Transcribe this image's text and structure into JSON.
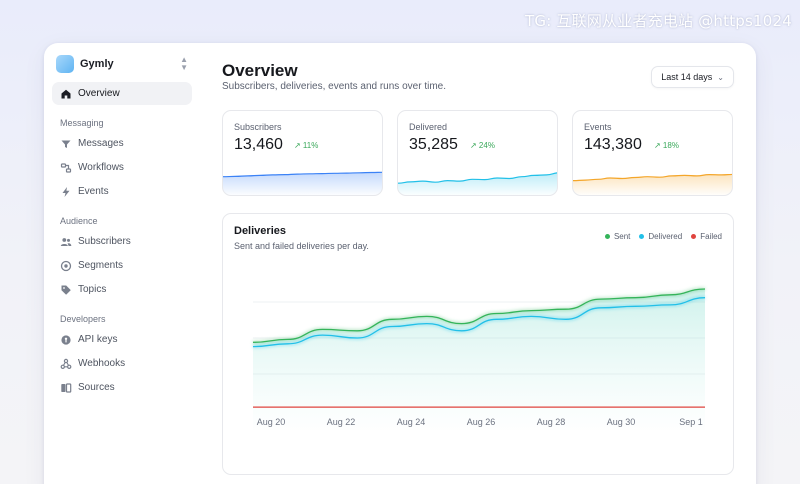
{
  "watermark": "TG: 互联网从业者充电站 @https1024",
  "workspace": {
    "name": "Gymly",
    "icon": "app-logo",
    "switch_icon": "chevron-updown-icon"
  },
  "sidebar": {
    "items": [
      {
        "label": "Overview",
        "icon": "home-icon",
        "active": true
      }
    ],
    "sections": [
      {
        "title": "Messaging",
        "items": [
          {
            "label": "Messages",
            "icon": "filter-icon"
          },
          {
            "label": "Workflows",
            "icon": "workflow-icon"
          },
          {
            "label": "Events",
            "icon": "bolt-icon"
          }
        ]
      },
      {
        "title": "Audience",
        "items": [
          {
            "label": "Subscribers",
            "icon": "users-icon"
          },
          {
            "label": "Segments",
            "icon": "target-icon"
          },
          {
            "label": "Topics",
            "icon": "tag-icon"
          }
        ]
      },
      {
        "title": "Developers",
        "items": [
          {
            "label": "API keys",
            "icon": "key-icon"
          },
          {
            "label": "Webhooks",
            "icon": "webhook-icon"
          },
          {
            "label": "Sources",
            "icon": "source-icon"
          }
        ]
      }
    ]
  },
  "header": {
    "title": "Overview",
    "subtitle": "Subscribers, deliveries, events and runs over time.",
    "range_label": "Last 14 days"
  },
  "stats": [
    {
      "label": "Subscribers",
      "value": "13,460",
      "delta": "↗ 11%",
      "color": "#3b82f6",
      "trend": [
        0.55,
        0.56,
        0.58,
        0.6,
        0.62,
        0.63,
        0.65,
        0.66,
        0.67,
        0.68,
        0.69,
        0.7,
        0.71,
        0.72
      ]
    },
    {
      "label": "Delivered",
      "value": "35,285",
      "delta": "↗ 24%",
      "color": "#22c0e8",
      "trend": [
        0.3,
        0.35,
        0.38,
        0.34,
        0.4,
        0.38,
        0.45,
        0.44,
        0.5,
        0.48,
        0.55,
        0.6,
        0.62,
        0.7
      ]
    },
    {
      "label": "Events",
      "value": "143,380",
      "delta": "↗ 18%",
      "color": "#f4a62a",
      "trend": [
        0.4,
        0.42,
        0.45,
        0.5,
        0.48,
        0.52,
        0.55,
        0.53,
        0.58,
        0.6,
        0.58,
        0.63,
        0.62,
        0.64
      ]
    }
  ],
  "deliveries": {
    "title": "Deliveries",
    "subtitle": "Sent and failed deliveries per day.",
    "legend": [
      {
        "label": "Sent",
        "color": "#34b45a"
      },
      {
        "label": "Delivered",
        "color": "#22c0e8"
      },
      {
        "label": "Failed",
        "color": "#e0443e"
      }
    ]
  },
  "chart_data": {
    "type": "area",
    "title": "Deliveries",
    "x_tick_labels": [
      "Aug 20",
      "Aug 22",
      "Aug 24",
      "Aug 26",
      "Aug 28",
      "Aug 30",
      "Sep 1"
    ],
    "x": [
      "Aug 19",
      "Aug 20",
      "Aug 21",
      "Aug 22",
      "Aug 23",
      "Aug 24",
      "Aug 25",
      "Aug 26",
      "Aug 27",
      "Aug 28",
      "Aug 29",
      "Aug 30",
      "Aug 31",
      "Sep 1"
    ],
    "ylim": [
      0,
      100
    ],
    "grid": true,
    "legend": "top-right",
    "series": [
      {
        "name": "Sent",
        "color": "#34b45a",
        "values": [
          47,
          49,
          56,
          55,
          63,
          65,
          60,
          67,
          69,
          70,
          77,
          78,
          80,
          84
        ]
      },
      {
        "name": "Delivered",
        "color": "#22c0e8",
        "values": [
          44,
          46,
          52,
          50,
          58,
          60,
          55,
          63,
          65,
          63,
          71,
          72,
          73,
          78
        ]
      },
      {
        "name": "Failed",
        "color": "#e0443e",
        "values": [
          2,
          2,
          2,
          2,
          2,
          2,
          2,
          2,
          2,
          2,
          2,
          2,
          2,
          2
        ]
      }
    ]
  }
}
